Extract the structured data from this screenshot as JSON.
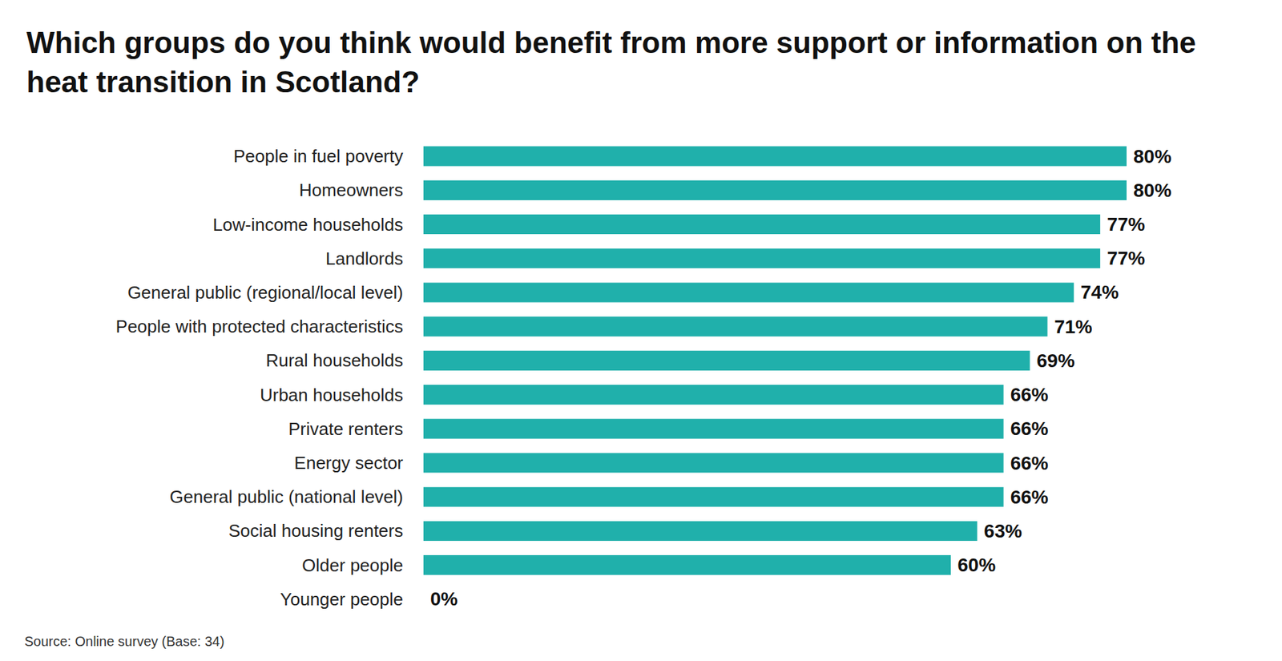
{
  "chart_data": {
    "type": "bar",
    "orientation": "horizontal",
    "title": "Which groups do you think would benefit from more support or information on the heat transition in Scotland?",
    "source": "Source: Online survey (Base: 34)",
    "categories": [
      "People in fuel poverty",
      "Homeowners",
      "Low-income households",
      "Landlords",
      "General public (regional/local level)",
      "People with protected characteristics",
      "Rural households",
      "Urban households",
      "Private renters",
      "Energy sector",
      "General public (national level)",
      "Social housing renters",
      "Older people",
      "Younger people"
    ],
    "values": [
      80,
      80,
      77,
      77,
      74,
      71,
      69,
      66,
      66,
      66,
      66,
      63,
      60,
      0
    ],
    "value_labels": [
      "80%",
      "80%",
      "77%",
      "77%",
      "74%",
      "71%",
      "69%",
      "66%",
      "66%",
      "66%",
      "66%",
      "63%",
      "60%",
      "0%"
    ],
    "color": "#20b0ab",
    "xlim": [
      0,
      80
    ],
    "data_labels": true,
    "tick_labels": "y",
    "grid": false
  }
}
